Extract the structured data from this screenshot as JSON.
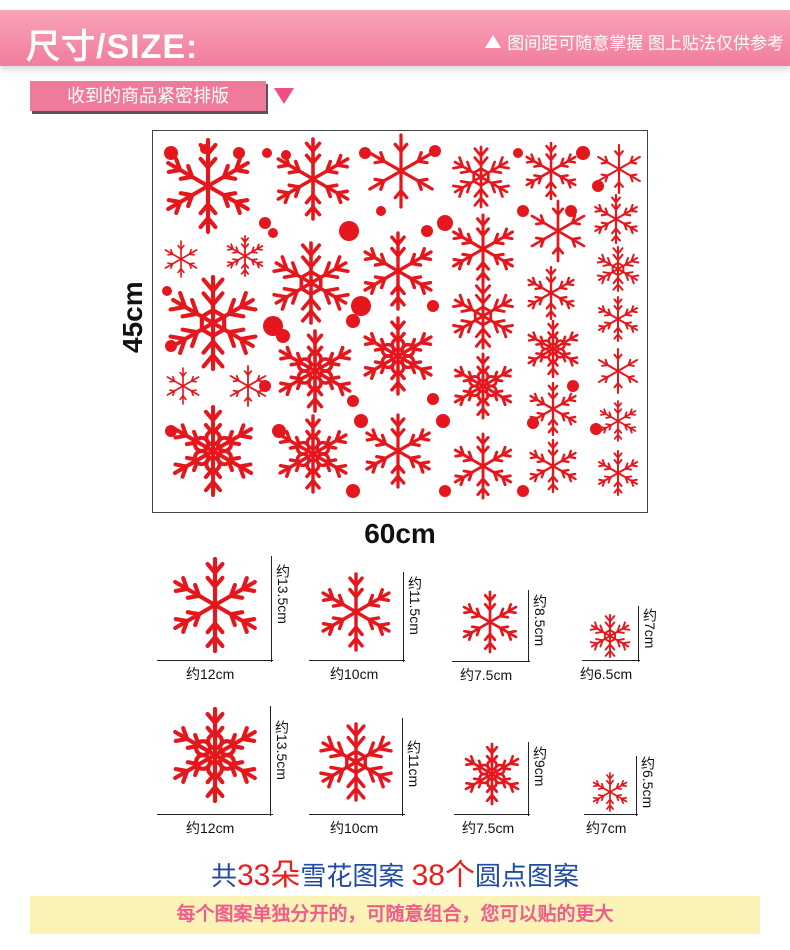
{
  "header": {
    "title": "尺寸/SIZE:",
    "note": "图间距可随意掌握 图上贴法仅供参考",
    "note_icon": "triangle-up-icon"
  },
  "sub_label": {
    "text": "收到的商品紧密排版",
    "icon": "triangle-down-icon"
  },
  "sheet": {
    "height_label": "45cm",
    "width_label": "60cm"
  },
  "sizes": [
    {
      "width": "约12cm",
      "height": "约13.5cm"
    },
    {
      "width": "约10cm",
      "height": "约11.5cm"
    },
    {
      "width": "约7.5cm",
      "height": "约8.5cm"
    },
    {
      "width": "约6.5cm",
      "height": "约7cm"
    },
    {
      "width": "约12cm",
      "height": "约13.5cm"
    },
    {
      "width": "约10cm",
      "height": "约11cm"
    },
    {
      "width": "约7.5cm",
      "height": "约9cm"
    },
    {
      "width": "约7cm",
      "height": "约6.5cm"
    }
  ],
  "summary": {
    "part1": "共",
    "snow_count": "33朵",
    "part2": "雪花图案",
    "dot_count": "38个",
    "part3": "圆点图案"
  },
  "footer": {
    "text": "每个图案单独分开的，可随意组合，您可以贴的更大"
  },
  "colors": {
    "header_pink": "#f17d9c",
    "snow_red": "#e5161c",
    "summary_blue": "#1f4aa8",
    "footer_bg": "#fbf3b5",
    "footer_text": "#ef5d8c"
  }
}
